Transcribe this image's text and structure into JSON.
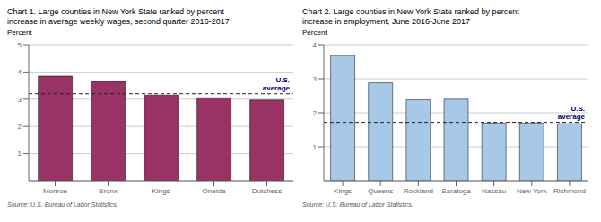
{
  "chart_data": [
    {
      "type": "bar",
      "title": "Chart 1. Large counties in New York State ranked by percent\nincrease in average weekly wages, second quarter 2016-2017",
      "y_label": "Percent",
      "categories": [
        "Monroe",
        "Bronx",
        "Kings",
        "Oneida",
        "Dutchess"
      ],
      "values": [
        3.85,
        3.65,
        3.15,
        3.05,
        2.97
      ],
      "color": "#993366",
      "ylim": [
        0,
        5
      ],
      "yticks": [
        1,
        2,
        3,
        4,
        5
      ],
      "grid": true,
      "annotation": {
        "text": "U.S.\naverage",
        "value": 3.2
      },
      "source": "Source: U.S. Bureau of Labor Statistics."
    },
    {
      "type": "bar",
      "title": "Chart 2. Large counties in New York State ranked by percent\nincrease in employment, June 2016-June 2017",
      "y_label": "Percent",
      "categories": [
        "Kings",
        "Queens",
        "Rockland",
        "Saratoga",
        "Nassau",
        "New York",
        "Richmond"
      ],
      "values": [
        3.68,
        2.88,
        2.38,
        2.4,
        1.7,
        1.7,
        1.68
      ],
      "color": "#a8c8e8",
      "ylim": [
        0,
        4
      ],
      "yticks": [
        1,
        2,
        3,
        4
      ],
      "grid": true,
      "annotation": {
        "text": "U.S.\naverage",
        "value": 1.72
      },
      "source": "Source: U.S. Bureau of Labor Statistics."
    }
  ]
}
